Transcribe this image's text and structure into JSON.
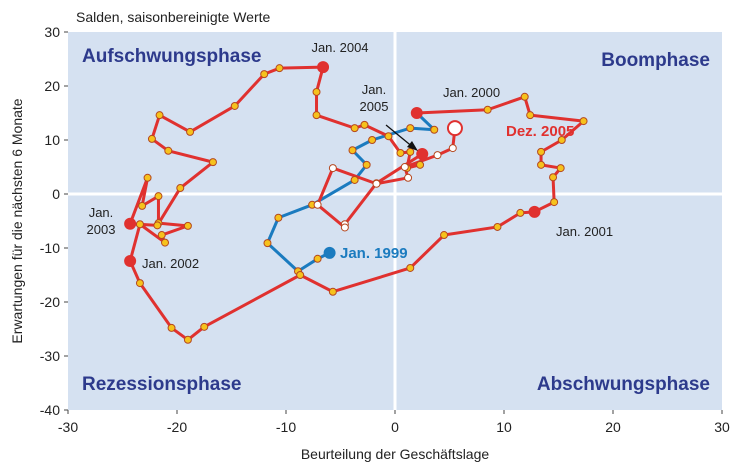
{
  "chart_data": {
    "type": "scatter-path",
    "subtitle": "Salden, saisonbereinigte Werte",
    "x_label": "Beurteilung der Geschäftslage",
    "y_label": "Erwartungen für die nächsten 6 Monate",
    "xlim": [
      -30,
      30
    ],
    "xticks": [
      -30,
      -20,
      -10,
      0,
      10,
      20,
      30
    ],
    "ylim": [
      -40,
      30
    ],
    "yticks": [
      -40,
      -30,
      -20,
      -10,
      0,
      10,
      20,
      30
    ],
    "quadrants": [
      "Aufschwungsphase",
      "Boomphase",
      "Rezessionsphase",
      "Abschwungsphase"
    ],
    "background": "#d5e1f1",
    "series": [
      {
        "color": "#1b7bbf",
        "marker_color": "#f6c21c",
        "x": [
          -6.0,
          -7.1,
          -8.9,
          -11.7,
          -10.7,
          -7.6,
          -3.7,
          -2.6,
          -3.9,
          -2.1,
          1.4,
          3.6,
          2.0
        ],
        "values": [
          -10.9,
          -12.0,
          -14.3,
          -9.1,
          -4.4,
          -2.0,
          2.6,
          5.4,
          8.1,
          10.0,
          12.2,
          11.9,
          15.0
        ]
      },
      {
        "color": "#e0312f",
        "marker_color": "#f6c21c",
        "x": [
          2.0,
          8.5,
          11.9,
          12.4,
          17.3,
          15.3,
          13.4,
          13.4,
          15.2,
          14.5,
          14.6,
          12.8,
          11.5,
          9.4,
          4.5,
          1.4,
          -5.7,
          -8.7,
          -17.5,
          -19.0,
          -20.5,
          -23.4,
          -24.3,
          -23.4,
          -21.1,
          -21.4,
          -19.0,
          -21.7,
          -21.7,
          -23.2,
          -22.7,
          -24.3,
          -21.8,
          -19.7,
          -16.7,
          -20.8,
          -22.3,
          -21.6,
          -18.8,
          -14.7,
          -12.0,
          -10.6,
          -6.6,
          -7.2,
          -7.2,
          -3.7,
          -2.8,
          -0.6,
          0.5,
          1.4,
          1.1,
          2.3
        ],
        "values": [
          15.0,
          15.6,
          18.0,
          14.6,
          13.5,
          10.0,
          7.8,
          5.4,
          4.8,
          3.1,
          -1.5,
          -3.3,
          -3.5,
          -6.1,
          -7.6,
          -13.7,
          -18.1,
          -15.0,
          -24.6,
          -27.0,
          -24.8,
          -16.5,
          -12.4,
          -5.6,
          -9.0,
          -7.6,
          -5.9,
          -5.4,
          -0.4,
          -2.2,
          3.0,
          -5.5,
          -5.8,
          1.1,
          5.9,
          8.0,
          10.2,
          14.6,
          11.5,
          16.3,
          22.2,
          23.3,
          23.5,
          18.9,
          14.6,
          12.2,
          12.8,
          10.7,
          7.6,
          7.8,
          4.8,
          5.4
        ]
      },
      {
        "color": "#e0312f",
        "marker_color": "#ffffff",
        "x": [
          2.5,
          -1.7,
          -4.6,
          -4.6,
          -7.1,
          -5.7,
          -1.7,
          1.2,
          0.9,
          3.9,
          5.3,
          5.5
        ],
        "values": [
          7.4,
          2.0,
          -5.6,
          -6.2,
          -2.0,
          4.8,
          1.9,
          3.0,
          5.0,
          7.2,
          8.5,
          12.2
        ]
      }
    ],
    "annotations": [
      {
        "lines": [
          "Jan. 1999"
        ],
        "color": "#1b7bbf"
      },
      {
        "lines": [
          "Jan. 2000"
        ],
        "color": "#222222"
      },
      {
        "lines": [
          "Jan. 2001"
        ],
        "color": "#222222"
      },
      {
        "lines": [
          "Jan. 2002"
        ],
        "color": "#222222"
      },
      {
        "lines": [
          "Jan.",
          "2003"
        ],
        "color": "#222222"
      },
      {
        "lines": [
          "Jan. 2004"
        ],
        "color": "#222222"
      },
      {
        "lines": [
          "Jan.",
          "2005"
        ],
        "color": "#222222"
      },
      {
        "lines": [
          "Dez. 2005"
        ],
        "color": "#e0312f"
      }
    ]
  }
}
